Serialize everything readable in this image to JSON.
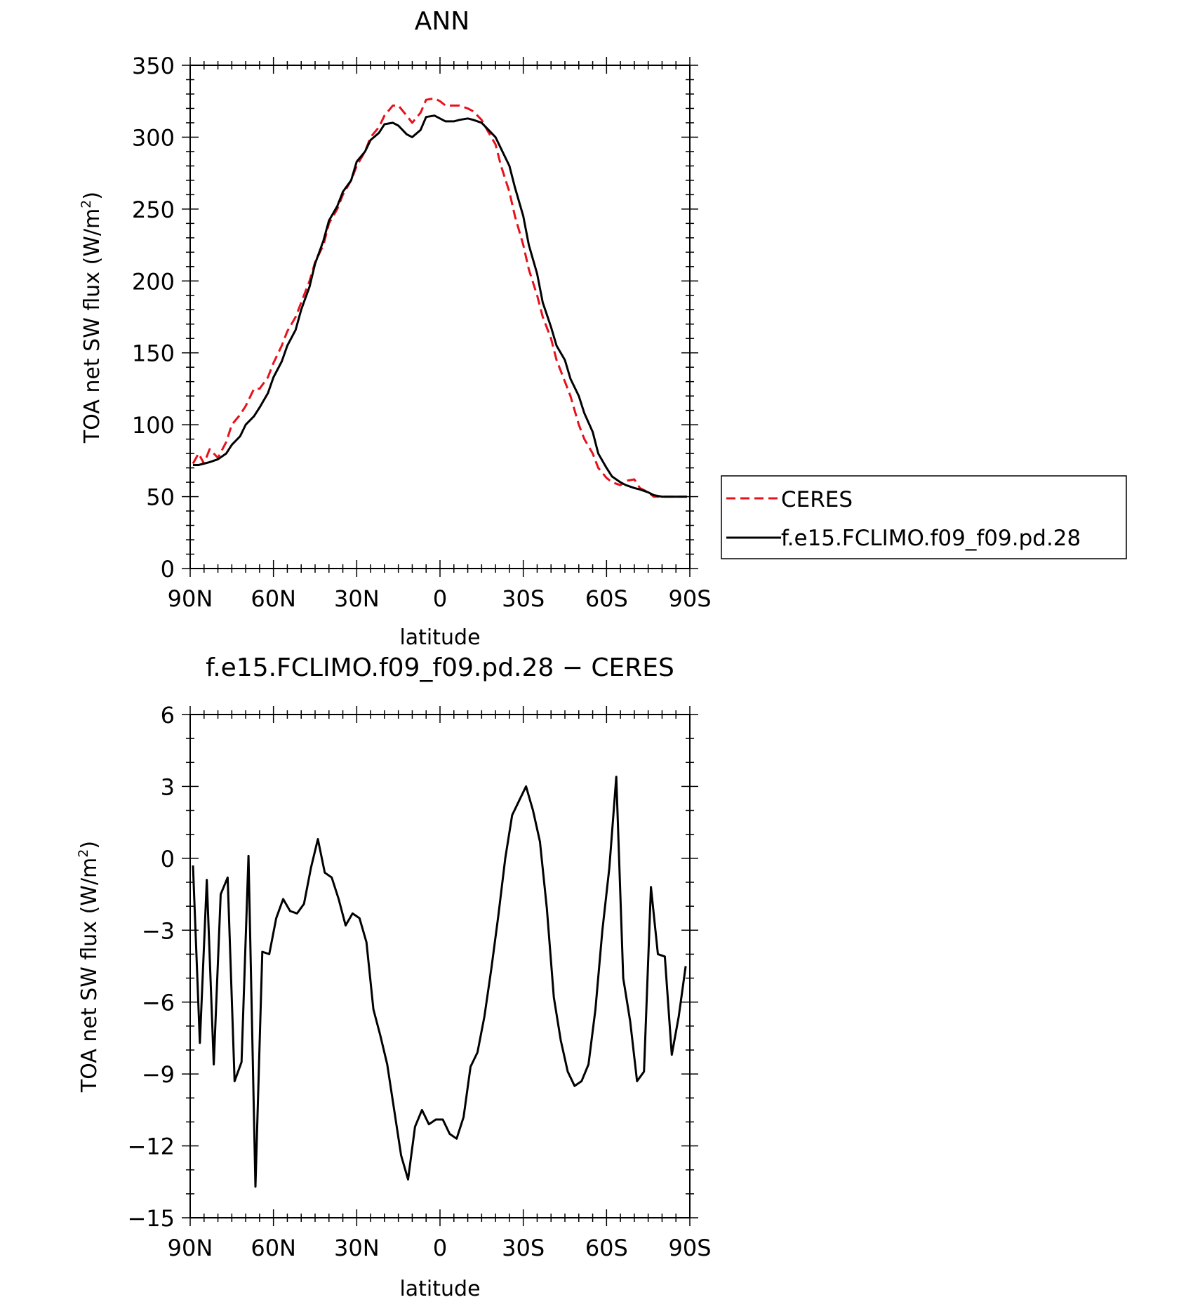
{
  "chart_data": [
    {
      "type": "line",
      "title": "ANN",
      "xlabel": "latitude",
      "ylabel_main": "TOA net SW flux (W/m",
      "ylabel_sup": "2",
      "ylabel_close": ")",
      "xlim": [
        90,
        -90
      ],
      "ylim": [
        0,
        350
      ],
      "x_ticks": [
        90,
        60,
        30,
        0,
        -30,
        -60,
        -90
      ],
      "x_tick_labels": [
        "90N",
        "60N",
        "30N",
        "0",
        "30S",
        "60S",
        "90S"
      ],
      "y_ticks": [
        0,
        50,
        100,
        150,
        200,
        250,
        300,
        350
      ],
      "y_tick_labels": [
        "0",
        "50",
        "100",
        "150",
        "200",
        "250",
        "300",
        "350"
      ],
      "legend_placement": "right",
      "series": [
        {
          "name": "CERES",
          "color": "#e8101b",
          "style": "dashed",
          "x": [
            89,
            87,
            85,
            83,
            80,
            77,
            75,
            72,
            70,
            67,
            65,
            62,
            60,
            57,
            55,
            52,
            50,
            47,
            45,
            42,
            40,
            37,
            35,
            32,
            30,
            27,
            25,
            22,
            20,
            17,
            15,
            12,
            10,
            7,
            5,
            2,
            0,
            -2,
            -5,
            -7,
            -10,
            -12,
            -15,
            -17,
            -20,
            -22,
            -25,
            -27,
            -30,
            -32,
            -35,
            -37,
            -40,
            -42,
            -45,
            -47,
            -50,
            -52,
            -55,
            -57,
            -60,
            -62,
            -65,
            -67,
            -70,
            -72,
            -75,
            -77,
            -80,
            -82,
            -85,
            -87,
            -89
          ],
          "y": [
            73,
            80,
            73,
            83,
            77,
            88,
            100,
            107,
            113,
            125,
            125,
            133,
            143,
            155,
            165,
            175,
            185,
            200,
            213,
            225,
            240,
            250,
            260,
            270,
            280,
            290,
            300,
            307,
            315,
            322,
            322,
            315,
            310,
            317,
            326,
            327,
            325,
            322,
            322,
            322,
            320,
            318,
            312,
            305,
            295,
            280,
            262,
            245,
            225,
            208,
            190,
            175,
            160,
            145,
            130,
            120,
            100,
            90,
            80,
            70,
            63,
            60,
            58,
            61,
            62,
            56,
            53,
            50,
            50,
            50,
            50,
            50,
            50
          ]
        },
        {
          "name": "f.e15.FCLIMO.f09_f09.pd.28",
          "color": "#000000",
          "style": "solid",
          "x": [
            89,
            87,
            85,
            83,
            80,
            77,
            75,
            72,
            70,
            67,
            65,
            62,
            60,
            57,
            55,
            52,
            50,
            47,
            45,
            42,
            40,
            37,
            35,
            32,
            30,
            27,
            25,
            22,
            20,
            17,
            15,
            12,
            10,
            7,
            5,
            2,
            0,
            -2,
            -5,
            -7,
            -10,
            -12,
            -15,
            -17,
            -20,
            -22,
            -25,
            -27,
            -30,
            -32,
            -35,
            -37,
            -40,
            -42,
            -45,
            -47,
            -50,
            -52,
            -55,
            -57,
            -60,
            -62,
            -65,
            -67,
            -70,
            -72,
            -75,
            -77,
            -80,
            -82,
            -85,
            -87,
            -89
          ],
          "y": [
            72,
            72,
            73,
            74,
            76,
            80,
            86,
            92,
            100,
            106,
            112,
            122,
            133,
            144,
            155,
            166,
            180,
            196,
            212,
            228,
            242,
            252,
            262,
            270,
            283,
            290,
            298,
            303,
            309,
            310,
            308,
            302,
            300,
            305,
            314,
            315,
            313,
            311,
            311,
            312,
            313,
            312,
            310,
            306,
            300,
            292,
            280,
            265,
            245,
            225,
            205,
            185,
            168,
            155,
            145,
            132,
            120,
            108,
            95,
            80,
            70,
            64,
            60,
            58,
            56,
            55,
            53,
            51,
            50,
            50,
            50,
            50,
            50
          ]
        }
      ]
    },
    {
      "type": "line",
      "title": "f.e15.FCLIMO.f09_f09.pd.28 − CERES",
      "xlabel": "latitude",
      "ylabel_main": "TOA net SW flux (W/m",
      "ylabel_sup": "2",
      "ylabel_close": ")",
      "xlim": [
        90,
        -90
      ],
      "ylim": [
        -15,
        6
      ],
      "x_ticks": [
        90,
        60,
        30,
        0,
        -30,
        -60,
        -90
      ],
      "x_tick_labels": [
        "90N",
        "60N",
        "30N",
        "0",
        "30S",
        "60S",
        "90S"
      ],
      "y_ticks": [
        -15,
        -12,
        -9,
        -6,
        -3,
        0,
        3,
        6
      ],
      "y_tick_labels": [
        "−15",
        "−12",
        "−9",
        "−6",
        "−3",
        "0",
        "3",
        "6"
      ],
      "series": [
        {
          "color": "#000000",
          "style": "solid",
          "x": [
            89,
            86.5,
            84,
            81.5,
            79,
            76.5,
            74,
            71.5,
            69,
            66.5,
            64,
            61.5,
            59,
            56.5,
            54,
            51.5,
            49,
            46.5,
            44,
            41.5,
            39,
            36.5,
            34,
            31.5,
            29,
            26.5,
            24,
            21.5,
            19,
            16.5,
            14,
            11.5,
            9,
            6.5,
            4,
            1.5,
            -1,
            -3.5,
            -6,
            -8.5,
            -11,
            -13.5,
            -16,
            -18.5,
            -21,
            -23.5,
            -26,
            -28.5,
            -31,
            -33.5,
            -36,
            -38.5,
            -41,
            -43.5,
            -46,
            -48.5,
            -51,
            -53.5,
            -56,
            -58.5,
            -61,
            -63.5,
            -66,
            -68.5,
            -71,
            -73.5,
            -76,
            -78.5,
            -81,
            -83.5,
            -86,
            -88.5
          ],
          "y": [
            -0.3,
            -7.7,
            -0.9,
            -8.6,
            -1.5,
            -0.8,
            -9.3,
            -8.5,
            0.1,
            -13.7,
            -3.9,
            -4.0,
            -2.5,
            -1.7,
            -2.2,
            -2.3,
            -1.9,
            -0.4,
            0.8,
            -0.6,
            -0.8,
            -1.7,
            -2.8,
            -2.3,
            -2.5,
            -3.5,
            -6.3,
            -7.4,
            -8.6,
            -10.5,
            -12.4,
            -13.4,
            -11.2,
            -10.5,
            -11.1,
            -10.9,
            -10.9,
            -11.5,
            -11.7,
            -10.8,
            -8.7,
            -8.1,
            -6.6,
            -4.6,
            -2.4,
            0,
            1.8,
            2.4,
            3.0,
            2.0,
            0.7,
            -2.1,
            -5.8,
            -7.6,
            -8.9,
            -9.5,
            -9.3,
            -8.6,
            -6.3,
            -3.0,
            -0.4,
            3.4,
            -5.0,
            -6.8,
            -9.3,
            -8.9,
            -1.2,
            -4.0,
            -4.1,
            -8.2,
            -6.6,
            -4.5
          ]
        }
      ]
    }
  ]
}
